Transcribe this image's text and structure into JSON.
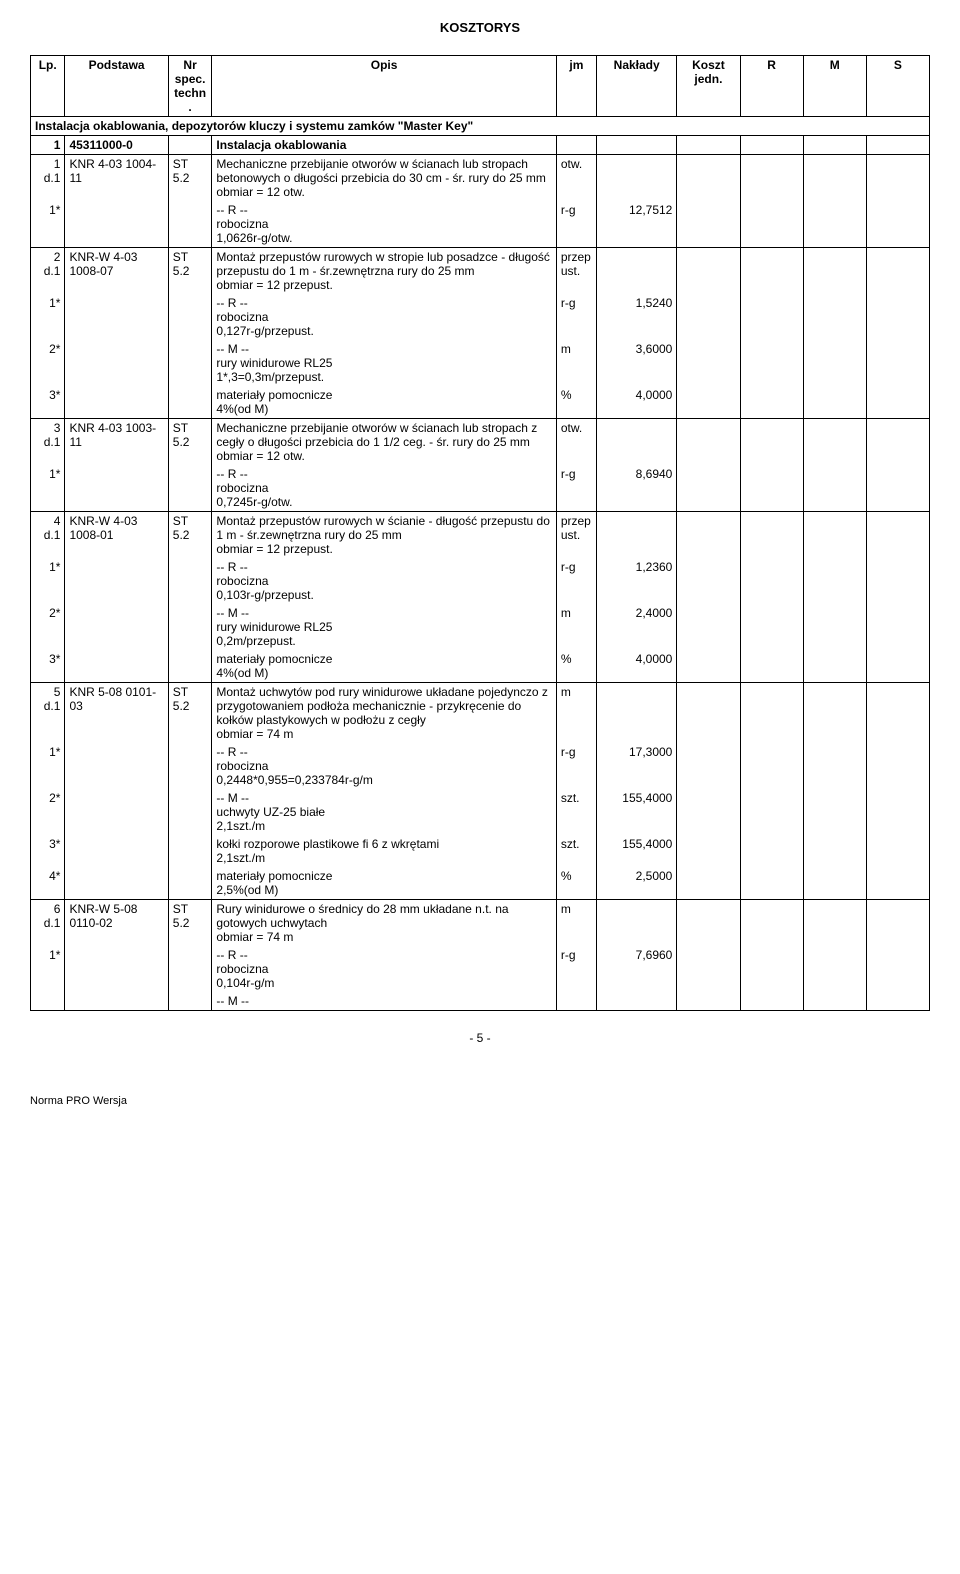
{
  "title": "KOSZTORYS",
  "headers": {
    "lp": "Lp.",
    "podstawa": "Podstawa",
    "nr": "Nr spec. techn.",
    "opis": "Opis",
    "jm": "jm",
    "naklady": "Nakłady",
    "koszt": "Koszt jedn.",
    "r": "R",
    "m": "M",
    "s": "S"
  },
  "section": "Instalacja okablowania, depozytorów kluczy i systemu zamków \"Master Key\"",
  "r1": {
    "lp": "1",
    "podstawa": "45311000-0",
    "opis": "Instalacja okablowania"
  },
  "r2": {
    "lp": "1 d.1",
    "podstawa": "KNR 4-03 1004-11",
    "nr": "ST 5.2",
    "opis": "Mechaniczne przebijanie otworów w ścianach lub stropach betonowych o długości przebicia do 30 cm - śr. rury do 25 mm\nobmiar = 12 otw.",
    "jm": "otw."
  },
  "r2a": {
    "lp": "1*",
    "opis": "-- R --\nrobocizna\n1,0626r-g/otw.",
    "jm": "r-g",
    "naklady": "12,7512"
  },
  "r3": {
    "lp": "2 d.1",
    "podstawa": "KNR-W 4-03 1008-07",
    "nr": "ST 5.2",
    "opis": "Montaż przepustów rurowych w stropie lub posadzce - długość przepustu do 1 m - śr.zewnętrzna rury do 25 mm\nobmiar = 12 przepust.",
    "jm": "przepust."
  },
  "r3a": {
    "lp": "1*",
    "opis": "-- R --\nrobocizna\n0,127r-g/przepust.",
    "jm": "r-g",
    "naklady": "1,5240"
  },
  "r3b": {
    "lp": "2*",
    "opis": "-- M --\nrury winidurowe RL25\n1*,3=0,3m/przepust.",
    "jm": "m",
    "naklady": "3,6000"
  },
  "r3c": {
    "lp": "3*",
    "opis": "materiały pomocnicze\n4%(od M)",
    "jm": "%",
    "naklady": "4,0000"
  },
  "r4": {
    "lp": "3 d.1",
    "podstawa": "KNR 4-03 1003-11",
    "nr": "ST 5.2",
    "opis": "Mechaniczne przebijanie otworów w ścianach lub stropach z cegły o długości przebicia do 1 1/2 ceg. - śr. rury do 25 mm\nobmiar = 12 otw.",
    "jm": "otw."
  },
  "r4a": {
    "lp": "1*",
    "opis": "-- R --\nrobocizna\n0,7245r-g/otw.",
    "jm": "r-g",
    "naklady": "8,6940"
  },
  "r5": {
    "lp": "4 d.1",
    "podstawa": "KNR-W 4-03 1008-01",
    "nr": "ST 5.2",
    "opis": "Montaż przepustów rurowych w ścianie - długość przepustu do 1 m - śr.zewnętrzna rury do 25 mm\nobmiar = 12 przepust.",
    "jm": "przepust."
  },
  "r5a": {
    "lp": "1*",
    "opis": "-- R --\nrobocizna\n0,103r-g/przepust.",
    "jm": "r-g",
    "naklady": "1,2360"
  },
  "r5b": {
    "lp": "2*",
    "opis": "-- M --\nrury winidurowe RL25\n0,2m/przepust.",
    "jm": "m",
    "naklady": "2,4000"
  },
  "r5c": {
    "lp": "3*",
    "opis": "materiały pomocnicze\n4%(od M)",
    "jm": "%",
    "naklady": "4,0000"
  },
  "r6": {
    "lp": "5 d.1",
    "podstawa": "KNR 5-08 0101-03",
    "nr": "ST 5.2",
    "opis": "Montaż uchwytów pod rury winidurowe układane pojedynczo z przygotowaniem podłoża mechanicznie - przykręcenie do kołków plastykowych w podłożu z cegły\nobmiar = 74 m",
    "jm": "m"
  },
  "r6a": {
    "lp": "1*",
    "opis": "-- R --\nrobocizna\n0,2448*0,955=0,233784r-g/m",
    "jm": "r-g",
    "naklady": "17,3000"
  },
  "r6b": {
    "lp": "2*",
    "opis": "-- M --\nuchwyty UZ-25 białe\n2,1szt./m",
    "jm": "szt.",
    "naklady": "155,4000"
  },
  "r6c": {
    "lp": "3*",
    "opis": "kołki rozporowe plastikowe fi 6 z wkrętami\n2,1szt./m",
    "jm": "szt.",
    "naklady": "155,4000"
  },
  "r6d": {
    "lp": "4*",
    "opis": "materiały pomocnicze\n2,5%(od M)",
    "jm": "%",
    "naklady": "2,5000"
  },
  "r7": {
    "lp": "6 d.1",
    "podstawa": "KNR-W 5-08 0110-02",
    "nr": "ST 5.2",
    "opis": "Rury winidurowe o średnicy do 28 mm układane n.t. na gotowych uchwytach\nobmiar = 74 m",
    "jm": "m"
  },
  "r7a": {
    "lp": "1*",
    "opis": "-- R --\nrobocizna\n0,104r-g/m",
    "jm": "r-g",
    "naklady": "7,6960"
  },
  "r7b": {
    "opis": "-- M --"
  },
  "page": "- 5 -",
  "footer": "Norma PRO Wersja"
}
